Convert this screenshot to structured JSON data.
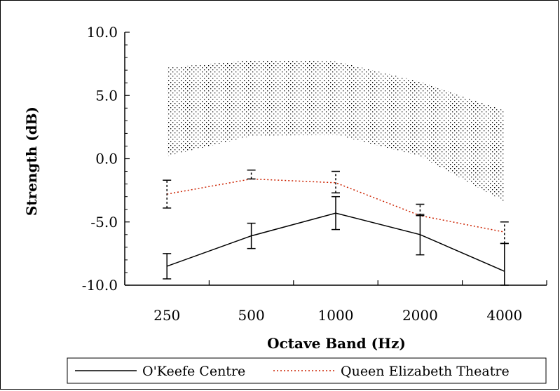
{
  "chart_data": {
    "type": "line",
    "title": "",
    "xlabel": "Octave Band (Hz)",
    "ylabel": "Strength (dB)",
    "categories": [
      "250",
      "500",
      "1000",
      "2000",
      "4000"
    ],
    "ylim": [
      -10.0,
      10.0
    ],
    "yticks": [
      "10.0",
      "5.0",
      "0.0",
      "-5.0",
      "-10.0"
    ],
    "ytick_values": [
      10,
      5,
      0,
      -5,
      -10
    ],
    "series": [
      {
        "name": "O'Keefe Centre",
        "color": "#000000",
        "style": "solid",
        "values": [
          -8.5,
          -6.1,
          -4.3,
          -6.0,
          -8.9
        ],
        "err_low": [
          -9.5,
          -7.1,
          -5.6,
          -7.6,
          -10.0
        ],
        "err_high": [
          -7.5,
          -5.1,
          -3.0,
          -4.4,
          -6.7
        ]
      },
      {
        "name": "Queen Elizabeth Theatre",
        "color": "#cc2200",
        "style": "dotted",
        "values": [
          -2.8,
          -1.6,
          -1.9,
          -4.5,
          -5.8
        ],
        "err_low": [
          -3.9,
          -1.6,
          -2.7,
          -4.5,
          -6.7
        ],
        "err_high": [
          -1.7,
          -0.9,
          -1.0,
          -3.6,
          -5.0
        ]
      }
    ],
    "band": {
      "lower": [
        0.2,
        1.8,
        1.9,
        0.2,
        -3.4
      ],
      "upper": [
        7.2,
        7.8,
        7.7,
        6.1,
        3.8
      ]
    },
    "grid": false,
    "legend": "bottom"
  }
}
